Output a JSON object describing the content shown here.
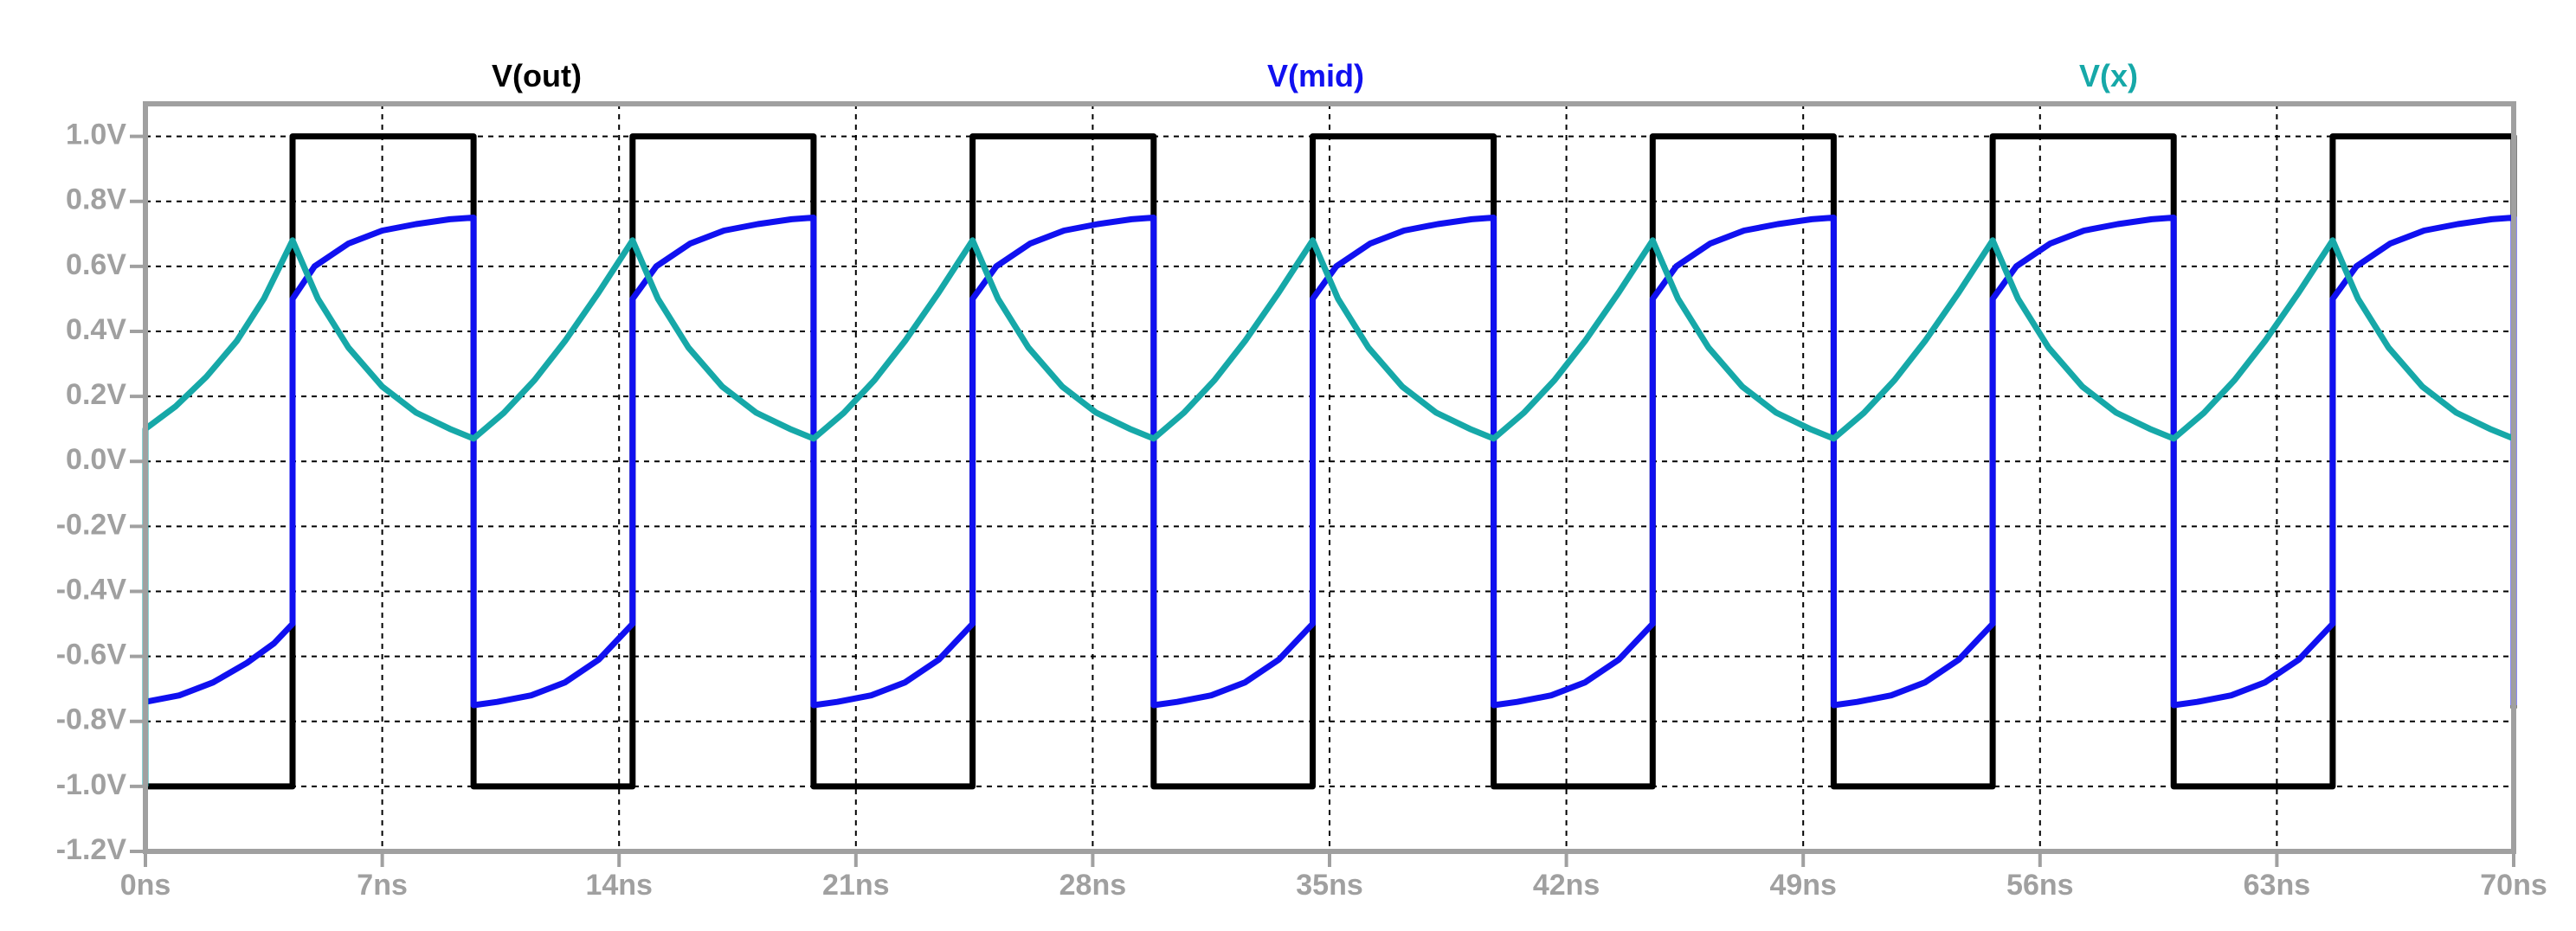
{
  "chart_data": {
    "type": "line",
    "title": "",
    "xlabel": "",
    "ylabel": "",
    "xlim": [
      0,
      70
    ],
    "ylim": [
      -1.2,
      1.0
    ],
    "grid": true,
    "x_ticks": [
      0,
      7,
      14,
      21,
      28,
      35,
      42,
      49,
      56,
      63,
      70
    ],
    "x_tick_labels": [
      "0ns",
      "7ns",
      "14ns",
      "21ns",
      "28ns",
      "35ns",
      "42ns",
      "49ns",
      "56ns",
      "63ns",
      "70ns"
    ],
    "y_ticks": [
      1.0,
      0.8,
      0.6,
      0.4,
      0.2,
      0.0,
      -0.2,
      -0.4,
      -0.6,
      -0.8,
      -1.0,
      -1.2
    ],
    "y_tick_labels": [
      "1.0V",
      "0.8V",
      "0.6V",
      "0.4V",
      "0.2V",
      "0.0V",
      "-0.2V",
      "-0.4V",
      "-0.6V",
      "-0.8V",
      "-1.0V",
      "-1.2V"
    ],
    "legend_placement": "top",
    "series": [
      {
        "name": "V(out)",
        "color": "#000000",
        "x": [
          0,
          4.35,
          4.35,
          9.7,
          9.7,
          14.4,
          14.4,
          19.75,
          19.75,
          24.45,
          24.45,
          29.8,
          29.8,
          34.5,
          34.5,
          39.85,
          39.85,
          44.55,
          44.55,
          49.9,
          49.9,
          54.6,
          54.6,
          59.95,
          59.95,
          64.65,
          64.65,
          70,
          70
        ],
        "values": [
          -1.0,
          -1.0,
          1.0,
          1.0,
          -1.0,
          -1.0,
          1.0,
          1.0,
          -1.0,
          -1.0,
          1.0,
          1.0,
          -1.0,
          -1.0,
          1.0,
          1.0,
          -1.0,
          -1.0,
          1.0,
          1.0,
          -1.0,
          -1.0,
          1.0,
          1.0,
          -1.0,
          -1.0,
          1.0,
          1.0,
          -0.76
        ]
      },
      {
        "name": "V(mid)",
        "color": "#1010f0",
        "x": [
          0,
          0,
          1.0,
          2.0,
          3.0,
          3.8,
          4.35,
          4.35,
          5.0,
          6.0,
          7.0,
          8.0,
          9.0,
          9.7,
          9.7,
          10.4,
          11.4,
          12.4,
          13.4,
          14.4,
          14.4,
          15.1,
          16.1,
          17.1,
          18.1,
          19.1,
          19.75,
          19.75,
          20.45,
          21.45,
          22.45,
          23.45,
          24.45,
          24.45,
          25.15,
          26.15,
          27.15,
          28.15,
          29.15,
          29.8,
          29.8,
          30.5,
          31.5,
          32.5,
          33.5,
          34.5,
          34.5,
          35.2,
          36.2,
          37.2,
          38.2,
          39.2,
          39.85,
          39.85,
          40.55,
          41.55,
          42.55,
          43.55,
          44.55,
          44.55,
          45.25,
          46.25,
          47.25,
          48.25,
          49.25,
          49.9,
          49.9,
          50.6,
          51.6,
          52.6,
          53.6,
          54.6,
          54.6,
          55.3,
          56.3,
          57.3,
          58.3,
          59.3,
          59.95,
          59.95,
          60.65,
          61.65,
          62.65,
          63.65,
          64.65,
          64.65,
          65.35,
          66.35,
          67.35,
          68.35,
          69.35,
          70,
          70
        ],
        "values": [
          0.08,
          -0.74,
          -0.72,
          -0.68,
          -0.62,
          -0.56,
          -0.5,
          0.5,
          0.6,
          0.67,
          0.71,
          0.73,
          0.745,
          0.75,
          -0.75,
          -0.74,
          -0.72,
          -0.68,
          -0.61,
          -0.5,
          0.5,
          0.6,
          0.67,
          0.71,
          0.73,
          0.745,
          0.75,
          -0.75,
          -0.74,
          -0.72,
          -0.68,
          -0.61,
          -0.5,
          0.5,
          0.6,
          0.67,
          0.71,
          0.73,
          0.745,
          0.75,
          -0.75,
          -0.74,
          -0.72,
          -0.68,
          -0.61,
          -0.5,
          0.5,
          0.6,
          0.67,
          0.71,
          0.73,
          0.745,
          0.75,
          -0.75,
          -0.74,
          -0.72,
          -0.68,
          -0.61,
          -0.5,
          0.5,
          0.6,
          0.67,
          0.71,
          0.73,
          0.745,
          0.75,
          -0.75,
          -0.74,
          -0.72,
          -0.68,
          -0.61,
          -0.5,
          0.5,
          0.6,
          0.67,
          0.71,
          0.73,
          0.745,
          0.75,
          -0.75,
          -0.74,
          -0.72,
          -0.68,
          -0.61,
          -0.5,
          0.5,
          0.6,
          0.67,
          0.71,
          0.73,
          0.745,
          0.75,
          -0.75
        ]
      },
      {
        "name": "V(x)",
        "color": "#16a8a8",
        "x": [
          0,
          0,
          0.9,
          1.8,
          2.7,
          3.5,
          4.35,
          5.1,
          6.0,
          7.0,
          8.0,
          9.0,
          9.7,
          10.6,
          11.5,
          12.4,
          13.4,
          14.4,
          15.15,
          16.05,
          17.05,
          18.05,
          19.05,
          19.75,
          20.65,
          21.55,
          22.45,
          23.45,
          24.45,
          25.2,
          26.1,
          27.1,
          28.1,
          29.1,
          29.8,
          30.7,
          31.6,
          32.5,
          33.5,
          34.5,
          35.25,
          36.15,
          37.15,
          38.15,
          39.15,
          39.85,
          40.75,
          41.65,
          42.55,
          43.55,
          44.55,
          45.3,
          46.2,
          47.2,
          48.2,
          49.2,
          49.9,
          50.8,
          51.7,
          52.6,
          53.6,
          54.6,
          55.35,
          56.25,
          57.25,
          58.25,
          59.25,
          59.95,
          60.85,
          61.75,
          62.65,
          63.65,
          64.65,
          65.4,
          66.3,
          67.3,
          68.3,
          69.3,
          70
        ],
        "values": [
          -1.0,
          0.1,
          0.17,
          0.26,
          0.37,
          0.5,
          0.68,
          0.5,
          0.35,
          0.23,
          0.15,
          0.1,
          0.07,
          0.15,
          0.25,
          0.37,
          0.52,
          0.68,
          0.5,
          0.35,
          0.23,
          0.15,
          0.1,
          0.07,
          0.15,
          0.25,
          0.37,
          0.52,
          0.68,
          0.5,
          0.35,
          0.23,
          0.15,
          0.1,
          0.07,
          0.15,
          0.25,
          0.37,
          0.52,
          0.68,
          0.5,
          0.35,
          0.23,
          0.15,
          0.1,
          0.07,
          0.15,
          0.25,
          0.37,
          0.52,
          0.68,
          0.5,
          0.35,
          0.23,
          0.15,
          0.1,
          0.07,
          0.15,
          0.25,
          0.37,
          0.52,
          0.68,
          0.5,
          0.35,
          0.23,
          0.15,
          0.1,
          0.07,
          0.15,
          0.25,
          0.37,
          0.52,
          0.68,
          0.5,
          0.35,
          0.23,
          0.15,
          0.1,
          0.07
        ]
      }
    ]
  }
}
